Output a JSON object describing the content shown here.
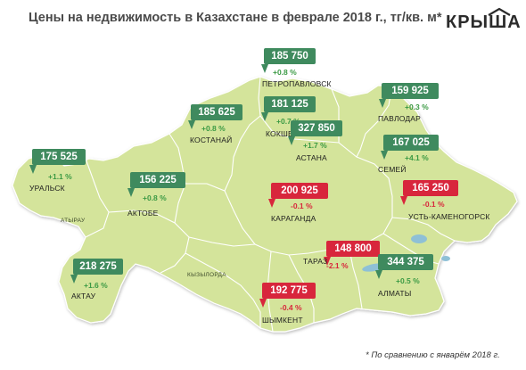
{
  "title": "Цены на недвижимость в Казахстане в феврале 2018 г., тг/кв. м*",
  "logo": "КРЫША",
  "footnote": "* По сравнению с январём 2018 г.",
  "colors": {
    "land": "#d4e49b",
    "border": "#ffffff",
    "lake": "#8ec0d6",
    "up": "#3f8a5e",
    "down": "#d8263c"
  },
  "region_labels": [
    {
      "id": "atyrau",
      "text": "АТЫРАУ"
    },
    {
      "id": "kyzylorda",
      "text": "КЫЗЫЛОРДА"
    }
  ],
  "cities": [
    {
      "id": "petropavlovsk",
      "name": "ПЕТРОПАВЛОВСК",
      "price": "185 750",
      "change": "+0.8 %",
      "trend": "up"
    },
    {
      "id": "kostanai",
      "name": "КОСТАНАЙ",
      "price": "185 625",
      "change": "+0.8 %",
      "trend": "up"
    },
    {
      "id": "kokshetau",
      "name": "КОКШЕТАУ",
      "price": "181 125",
      "change": "+0.7 %",
      "trend": "up"
    },
    {
      "id": "pavlodar",
      "name": "ПАВЛОДАР",
      "price": "159 925",
      "change": "+0.3 %",
      "trend": "up"
    },
    {
      "id": "astana",
      "name": "АСТАНА",
      "price": "327 850",
      "change": "+1.7 %",
      "trend": "up"
    },
    {
      "id": "semei",
      "name": "СЕМЕЙ",
      "price": "167 025",
      "change": "+4.1 %",
      "trend": "up"
    },
    {
      "id": "uralsk",
      "name": "УРАЛЬСК",
      "price": "175 525",
      "change": "+1.1 %",
      "trend": "up"
    },
    {
      "id": "aktobe",
      "name": "АКТОБЕ",
      "price": "156 225",
      "change": "+0.8 %",
      "trend": "up"
    },
    {
      "id": "karaganda",
      "name": "КАРАГАНДА",
      "price": "200 925",
      "change": "-0.1 %",
      "trend": "down"
    },
    {
      "id": "ust-kamenogorsk",
      "name": "УСТЬ-КАМЕНОГОРСК",
      "price": "165 250",
      "change": "-0.1 %",
      "trend": "down"
    },
    {
      "id": "aktau",
      "name": "АКТАУ",
      "price": "218 275",
      "change": "+1.6 %",
      "trend": "up"
    },
    {
      "id": "taraz",
      "name": "ТАРАЗ",
      "price": "148 800",
      "change": "-2.1 %",
      "trend": "down"
    },
    {
      "id": "almaty",
      "name": "АЛМАТЫ",
      "price": "344 375",
      "change": "+0.5 %",
      "trend": "up"
    },
    {
      "id": "shymkent",
      "name": "ШЫМКЕНТ",
      "price": "192 775",
      "change": "-0.4 %",
      "trend": "down"
    }
  ]
}
